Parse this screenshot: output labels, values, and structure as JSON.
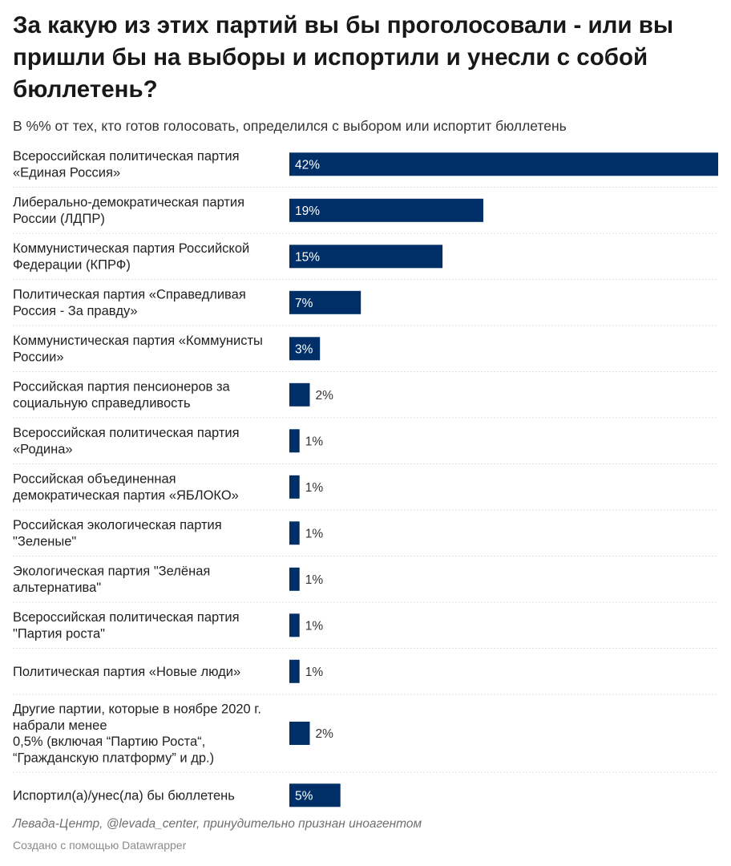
{
  "header": {
    "title": "За какую из этих партий вы бы проголосовали - или вы пришли бы на выборы и испортили и унесли с собой бюллетень?",
    "subtitle": "В %% от тех, кто готов голосовать, определился с выбором или испортит бюллетень"
  },
  "footer": {
    "source": "Левада-Центр, @levada_center, принудительно признан иноагентом",
    "credit": "Создано с помощью Datawrapper"
  },
  "colors": {
    "bar": "#002f67",
    "label_inside": "#ffffff",
    "label_outside": "#333333",
    "separator": "#e0e0e0"
  },
  "chart_data": {
    "type": "bar",
    "orientation": "horizontal",
    "value_suffix": "%",
    "xlim": [
      0,
      42
    ],
    "categories": [
      [
        "Всероссийская политическая партия",
        "«Единая Россия»"
      ],
      [
        "Либерально-демократическая партия",
        "России (ЛДПР)"
      ],
      [
        "Коммунистическая партия Российской",
        "Федерации (КПРФ)"
      ],
      [
        "Политическая партия «Справедливая",
        "Россия - За правду»"
      ],
      [
        "Коммунистическая партия «Коммунисты",
        "России»"
      ],
      [
        "Российская партия пенсионеров за",
        "социальную справедливость"
      ],
      [
        "Всероссийская политическая партия",
        "«Родина»"
      ],
      [
        "Российская объединенная",
        "демократическая партия «ЯБЛОКО»"
      ],
      [
        "Российская экологическая партия",
        "\"Зеленые\""
      ],
      [
        "Экологическая партия \"Зелёная",
        "альтернатива\""
      ],
      [
        "Всероссийская политическая партия",
        "\"Партия роста\""
      ],
      [
        "Политическая партия «Новые люди»"
      ],
      [
        "Другие партии, которые в ноябре 2020 г.",
        "набрали менее",
        "0,5% (включая “Партию Роста“,",
        "“Гражданскую платформу” и др.)"
      ],
      [
        "Испортил(а)/унес(ла) бы бюллетень"
      ]
    ],
    "values": [
      42,
      19,
      15,
      7,
      3,
      2,
      1,
      1,
      1,
      1,
      1,
      1,
      2,
      5
    ]
  }
}
